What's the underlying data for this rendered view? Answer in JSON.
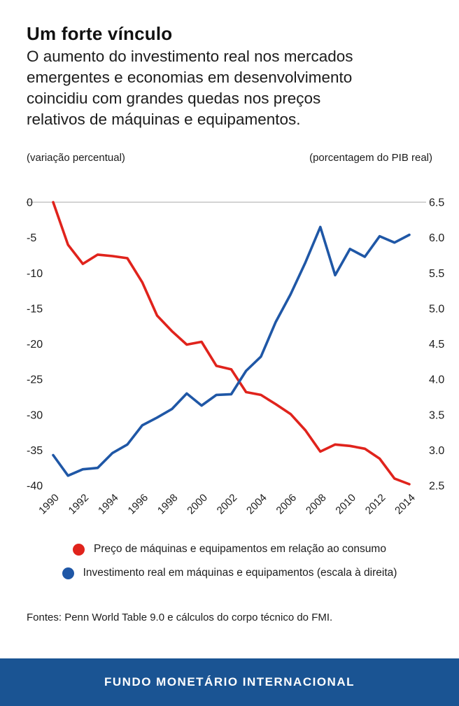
{
  "chart_data": {
    "type": "line",
    "title": "Um forte vínculo",
    "subtitle_lines": [
      "O aumento do investimento real nos mercados",
      "emergentes e economias em desenvolvimento",
      "coincidiu com grandes quedas nos preços",
      "relativos de máquinas e equipamentos."
    ],
    "x": [
      1990,
      1991,
      1992,
      1993,
      1994,
      1995,
      1996,
      1997,
      1998,
      1999,
      2000,
      2001,
      2002,
      2003,
      2004,
      2005,
      2006,
      2007,
      2008,
      2009,
      2010,
      2011,
      2012,
      2013,
      2014
    ],
    "x_ticks": [
      1990,
      1992,
      1994,
      1996,
      1998,
      2000,
      2002,
      2004,
      2006,
      2008,
      2010,
      2012,
      2014
    ],
    "left_axis": {
      "label": "(variação percentual)",
      "tick_labels": [
        "0",
        "-5",
        "-10",
        "-15",
        "-20",
        "-25",
        "-30",
        "-35",
        "-40"
      ],
      "range": [
        0,
        -40
      ]
    },
    "right_axis": {
      "label": "(porcentagem do PIB real)",
      "tick_labels": [
        "6.5",
        "6.0",
        "5.5",
        "5.0",
        "4.5",
        "4.0",
        "3.5",
        "3.0",
        "2.5"
      ],
      "range": [
        6.5,
        2.5
      ]
    },
    "grid": "single horizontal gridline at 0 / 6.5",
    "grid_color": "#d4d4d4",
    "legend_position": "below chart, centered",
    "series": [
      {
        "name": "Preço de máquinas e equipamentos em relação ao consumo",
        "axis": "left",
        "color": "#e0231c",
        "values": [
          0,
          -6,
          -8.7,
          -7.4,
          -7.6,
          -7.9,
          -11.3,
          -16,
          -18.2,
          -20.1,
          -19.7,
          -23.1,
          -23.6,
          -26.8,
          -27.2,
          -28.5,
          -29.9,
          -32.2,
          -35.2,
          -34.2,
          -34.4,
          -34.8,
          -36.2,
          -39,
          -39.8
        ]
      },
      {
        "name": "Investimento real em máquinas e equipamentos (escala à direita)",
        "axis": "right",
        "color": "#1f57a6",
        "values": [
          2.93,
          2.64,
          2.73,
          2.75,
          2.96,
          3.08,
          3.35,
          3.46,
          3.58,
          3.8,
          3.63,
          3.78,
          3.79,
          4.12,
          4.32,
          4.81,
          5.2,
          5.65,
          6.15,
          5.47,
          5.84,
          5.73,
          6.02,
          5.93,
          6.04
        ]
      }
    ]
  },
  "footer": {
    "source": "Fontes: Penn World Table 9.0 e cálculos do corpo técnico do FMI."
  },
  "bottom_bar": {
    "label": "FUNDO MONETÁRIO INTERNACIONAL",
    "background": "#1a5493"
  }
}
